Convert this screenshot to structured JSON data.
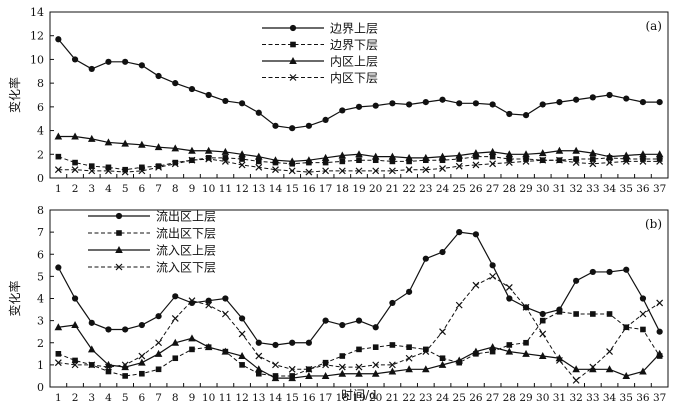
{
  "chart_data": [
    {
      "type": "line",
      "panel_label": "(a)",
      "ylabel": "变化率",
      "xlabel": "",
      "ylim": [
        0,
        14
      ],
      "yticks": [
        0,
        2,
        4,
        6,
        8,
        10,
        12,
        14
      ],
      "x": [
        1,
        2,
        3,
        4,
        5,
        6,
        7,
        8,
        9,
        10,
        11,
        12,
        13,
        14,
        15,
        16,
        17,
        18,
        19,
        20,
        21,
        22,
        23,
        24,
        25,
        26,
        27,
        28,
        29,
        30,
        31,
        32,
        33,
        34,
        35,
        36,
        37
      ],
      "legend_position": "top-center",
      "series": [
        {
          "name": "边界上层",
          "marker": "circle",
          "dash": "solid",
          "values": [
            11.7,
            10.0,
            9.2,
            9.8,
            9.8,
            9.5,
            8.6,
            8.0,
            7.5,
            7.0,
            6.5,
            6.3,
            5.5,
            4.4,
            4.2,
            4.4,
            4.9,
            5.7,
            6.0,
            6.1,
            6.3,
            6.2,
            6.4,
            6.6,
            6.3,
            6.3,
            6.2,
            5.4,
            5.3,
            6.2,
            6.4,
            6.6,
            6.8,
            7.0,
            6.7,
            6.4,
            6.4
          ]
        },
        {
          "name": "边界下层",
          "marker": "square",
          "dash": "dashed",
          "values": [
            1.8,
            1.3,
            1.0,
            0.9,
            0.7,
            0.9,
            1.0,
            1.3,
            1.5,
            1.7,
            1.7,
            1.6,
            1.4,
            1.3,
            1.2,
            1.3,
            1.3,
            1.4,
            1.5,
            1.5,
            1.4,
            1.4,
            1.5,
            1.5,
            1.6,
            1.8,
            1.8,
            1.6,
            1.6,
            1.5,
            1.5,
            1.6,
            1.6,
            1.7,
            1.6,
            1.6,
            1.6
          ]
        },
        {
          "name": "内区上层",
          "marker": "triangle",
          "dash": "solid",
          "values": [
            3.5,
            3.5,
            3.3,
            3.0,
            2.9,
            2.8,
            2.6,
            2.5,
            2.3,
            2.3,
            2.2,
            2.0,
            1.8,
            1.5,
            1.4,
            1.5,
            1.7,
            1.9,
            2.0,
            1.8,
            1.8,
            1.7,
            1.7,
            1.8,
            1.9,
            2.1,
            2.2,
            2.0,
            2.0,
            2.1,
            2.3,
            2.3,
            2.1,
            1.8,
            1.9,
            2.0,
            2.0
          ]
        },
        {
          "name": "内区下层",
          "marker": "x",
          "dash": "dashed",
          "values": [
            0.7,
            0.7,
            0.6,
            0.6,
            0.5,
            0.6,
            0.9,
            1.2,
            1.5,
            1.6,
            1.4,
            1.1,
            0.9,
            0.7,
            0.6,
            0.5,
            0.6,
            0.6,
            0.6,
            0.6,
            0.6,
            0.7,
            0.7,
            0.8,
            1.0,
            1.1,
            1.2,
            1.3,
            1.4,
            1.5,
            1.5,
            1.3,
            1.2,
            1.3,
            1.4,
            1.4,
            1.4
          ]
        }
      ]
    },
    {
      "type": "line",
      "panel_label": "(b)",
      "ylabel": "变化率",
      "xlabel": "时间/d",
      "ylim": [
        0,
        8
      ],
      "yticks": [
        0,
        1,
        2,
        3,
        4,
        5,
        6,
        7,
        8
      ],
      "x": [
        1,
        2,
        3,
        4,
        5,
        6,
        7,
        8,
        9,
        10,
        11,
        12,
        13,
        14,
        15,
        16,
        17,
        18,
        19,
        20,
        21,
        22,
        23,
        24,
        25,
        26,
        27,
        28,
        29,
        30,
        31,
        32,
        33,
        34,
        35,
        36,
        37
      ],
      "legend_position": "top-left",
      "series": [
        {
          "name": "流出区上层",
          "marker": "circle",
          "dash": "solid",
          "values": [
            5.4,
            4.0,
            2.9,
            2.6,
            2.6,
            2.8,
            3.2,
            4.1,
            3.8,
            3.9,
            4.0,
            3.1,
            2.0,
            1.9,
            2.0,
            2.0,
            3.0,
            2.8,
            3.0,
            2.7,
            3.8,
            4.3,
            5.8,
            6.1,
            7.0,
            6.9,
            5.5,
            4.0,
            3.6,
            3.3,
            3.5,
            4.8,
            5.2,
            5.2,
            5.3,
            4.0,
            2.5
          ]
        },
        {
          "name": "流出区下层",
          "marker": "square",
          "dash": "dashed",
          "values": [
            1.5,
            1.2,
            1.0,
            0.7,
            0.5,
            0.6,
            0.8,
            1.3,
            1.7,
            1.8,
            1.6,
            1.0,
            0.6,
            0.5,
            0.5,
            0.8,
            1.1,
            1.4,
            1.7,
            1.8,
            1.9,
            1.8,
            1.7,
            1.3,
            1.1,
            1.5,
            1.6,
            1.9,
            2.0,
            3.0,
            3.4,
            3.3,
            3.3,
            3.3,
            2.7,
            2.6,
            1.4
          ]
        },
        {
          "name": "流入区上层",
          "marker": "triangle",
          "dash": "solid",
          "values": [
            2.7,
            2.8,
            1.7,
            1.0,
            0.9,
            1.1,
            1.5,
            2.0,
            2.2,
            1.8,
            1.6,
            1.4,
            0.8,
            0.4,
            0.4,
            0.5,
            0.5,
            0.6,
            0.6,
            0.6,
            0.7,
            0.8,
            0.8,
            1.0,
            1.2,
            1.6,
            1.8,
            1.6,
            1.5,
            1.4,
            1.3,
            0.8,
            0.8,
            0.8,
            0.5,
            0.7,
            1.5
          ]
        },
        {
          "name": "流入区下层",
          "marker": "x",
          "dash": "dashed",
          "values": [
            1.1,
            1.0,
            1.0,
            0.9,
            1.0,
            1.4,
            2.0,
            3.1,
            3.9,
            3.7,
            3.3,
            2.4,
            1.4,
            1.0,
            0.8,
            0.8,
            1.0,
            0.9,
            0.9,
            1.0,
            1.0,
            1.3,
            1.6,
            2.5,
            3.7,
            4.6,
            5.0,
            4.5,
            3.6,
            2.4,
            1.2,
            0.3,
            0.9,
            1.6,
            2.7,
            3.3,
            3.8
          ]
        }
      ]
    }
  ]
}
